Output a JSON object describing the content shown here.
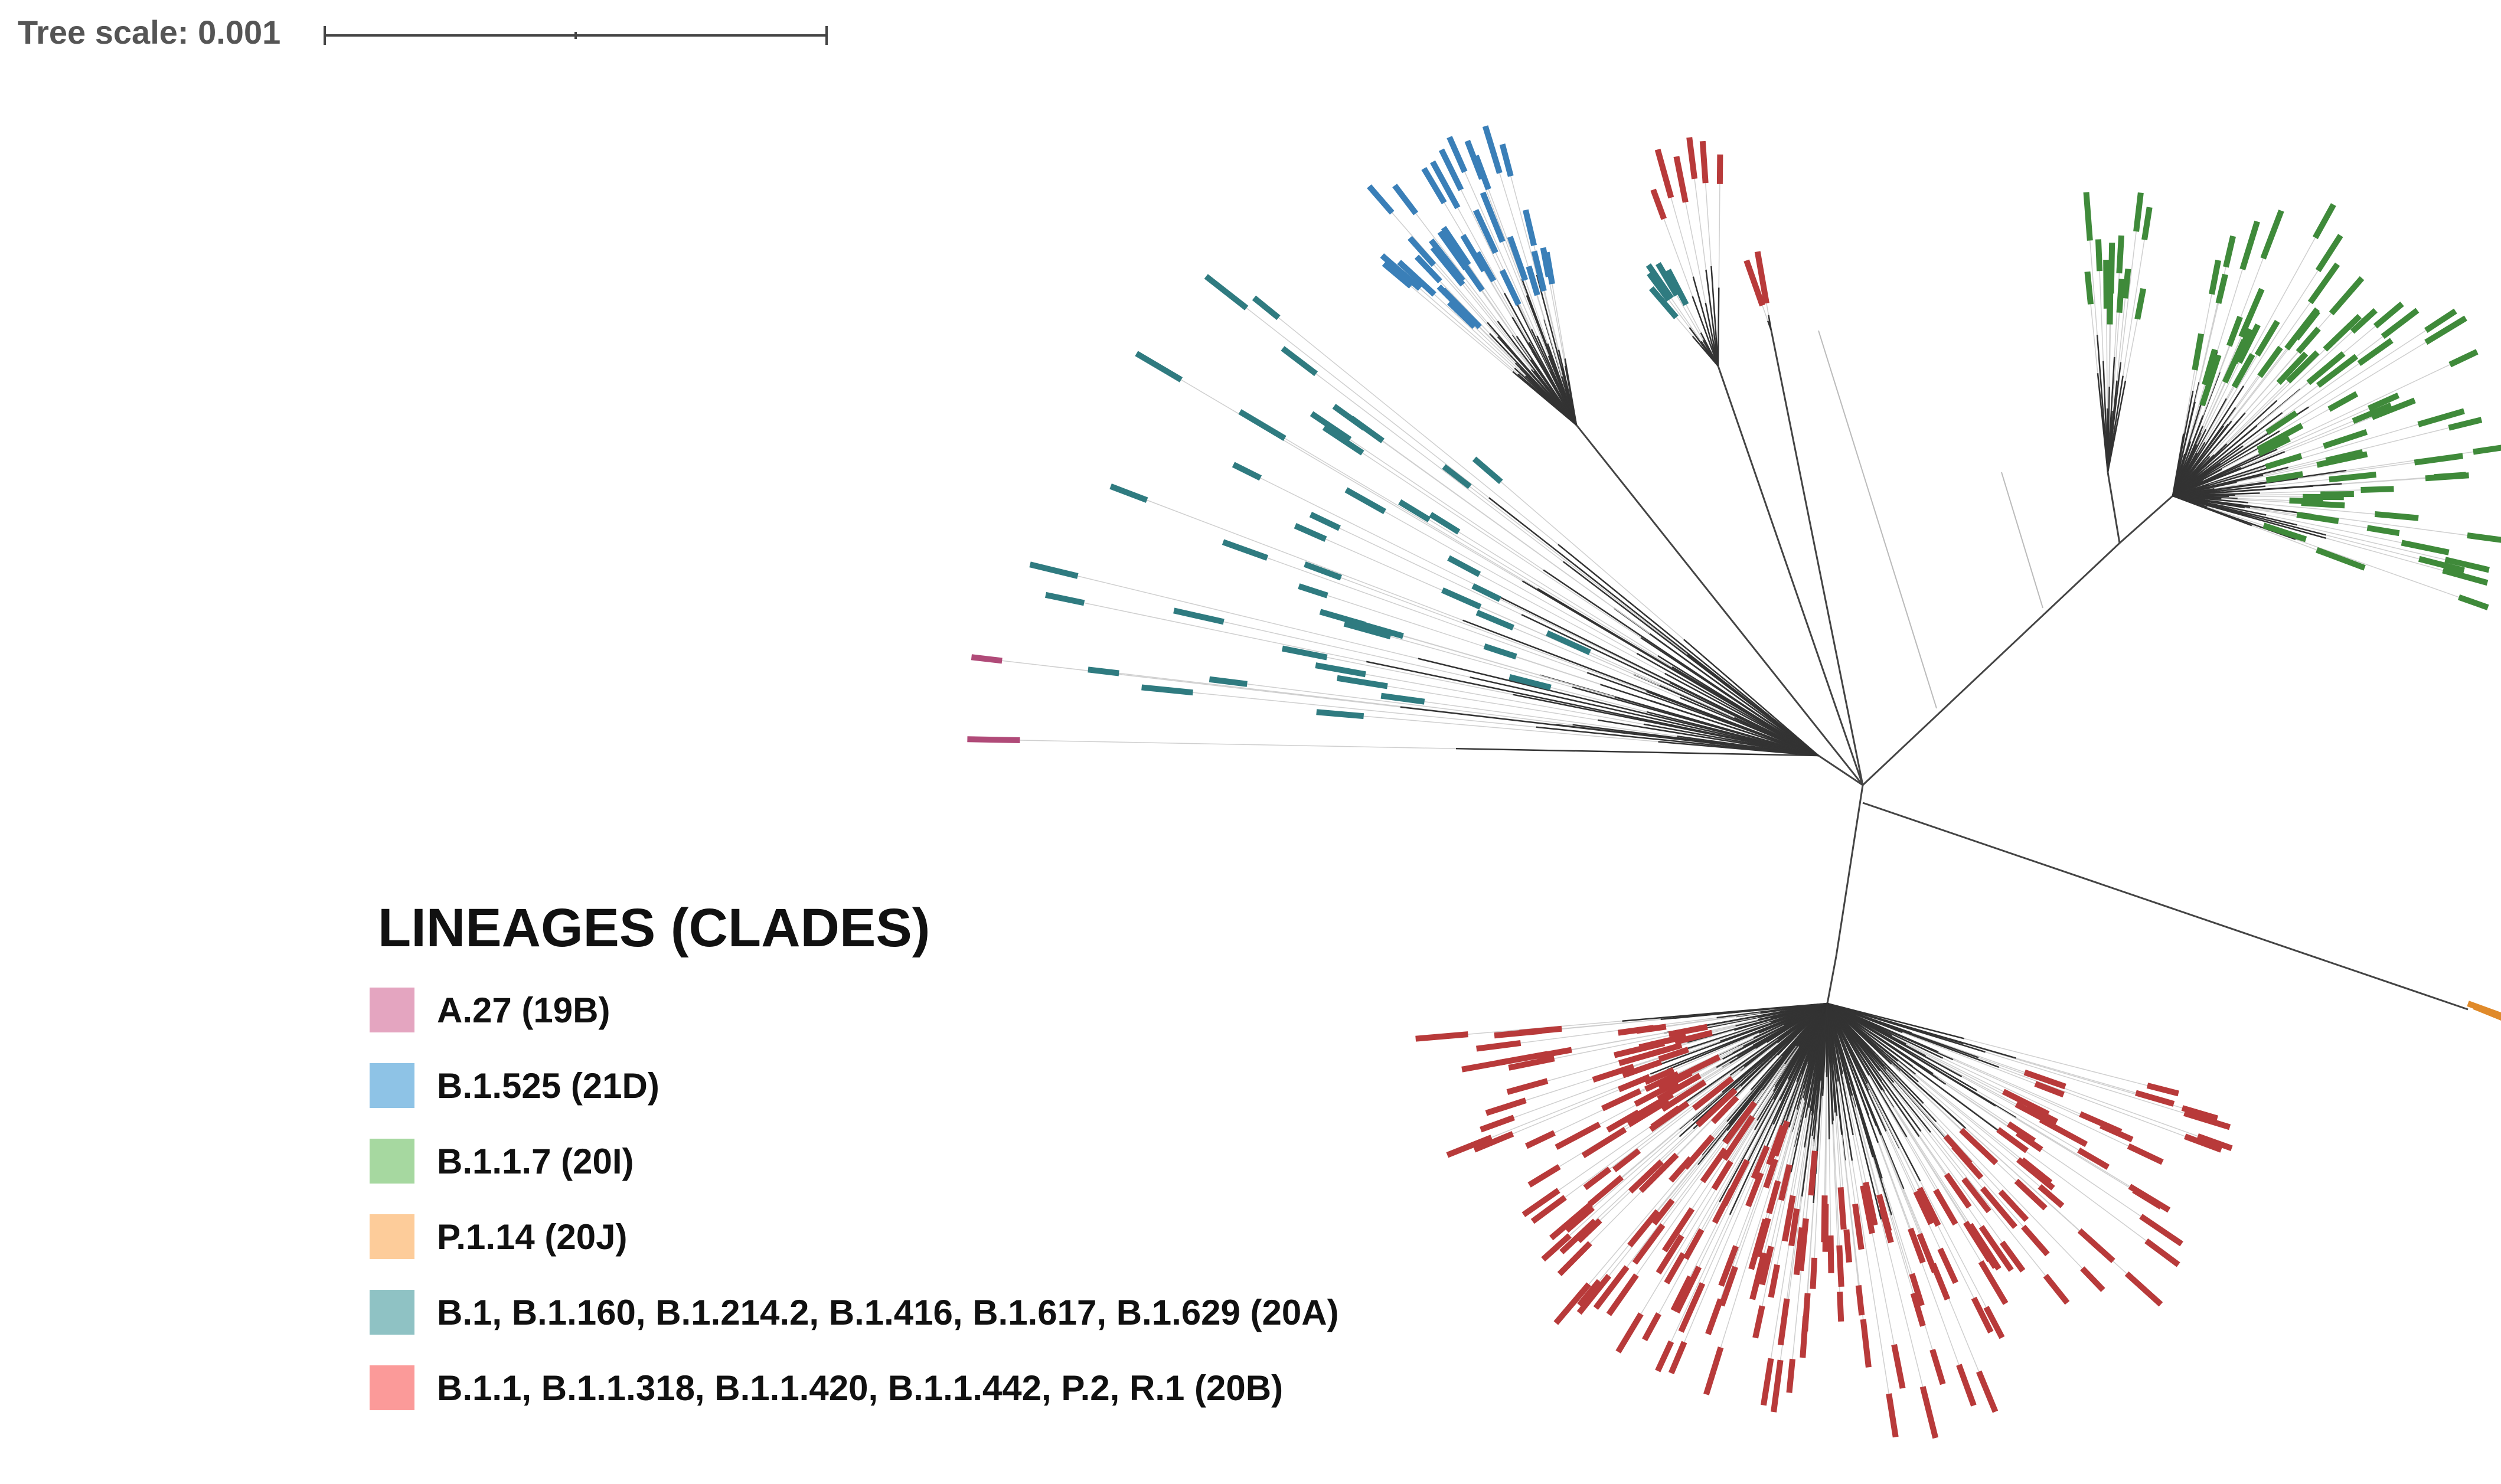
{
  "tree_scale": {
    "label": "Tree scale: 0.001"
  },
  "legend": {
    "title": "LINEAGES (CLADES)",
    "items": [
      {
        "label": "A.27 (19B)",
        "color": "#e4a5c0",
        "leaf_color": "#b04a78"
      },
      {
        "label": "B.1.525 (21D)",
        "color": "#8ec3e6",
        "leaf_color": "#3a7fb8"
      },
      {
        "label": "B.1.1.7 (20I)",
        "color": "#a6d8a0",
        "leaf_color": "#3f8a3a"
      },
      {
        "label": "P.1.14 (20J)",
        "color": "#fdcc9a",
        "leaf_color": "#e08a2a"
      },
      {
        "label": "B.1, B.1.160, B.1.214.2, B.1.416, B.1.617, B.1.629 (20A)",
        "color": "#8fc2c4",
        "leaf_color": "#2f7b80"
      },
      {
        "label": "B.1.1, B.1.1.318, B.1.1.420, B.1.1.442, P.2, R.1 (20B)",
        "color": "#fb9a99",
        "leaf_color": "#b83a3a"
      }
    ]
  }
}
